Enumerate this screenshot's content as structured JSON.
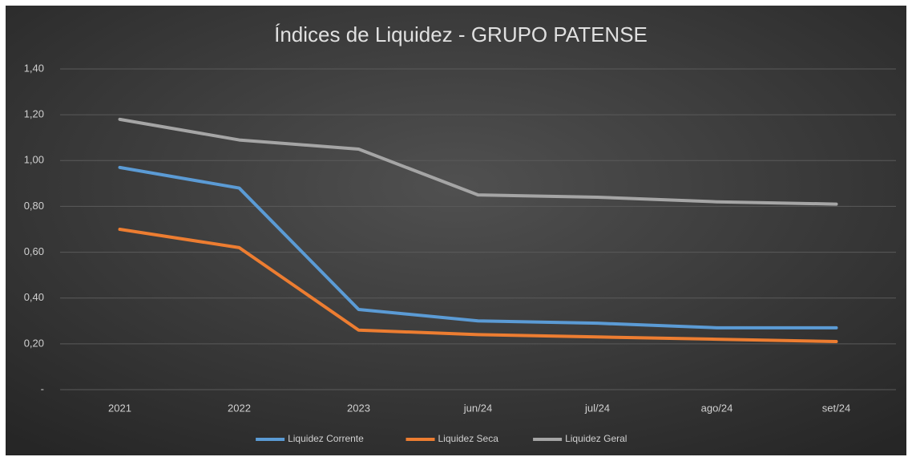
{
  "chart_data": {
    "type": "line",
    "title": "Índices de Liquidez - GRUPO PATENSE",
    "categories": [
      "2021",
      "2022",
      "2023",
      "jun/24",
      "jul/24",
      "ago/24",
      "set/24"
    ],
    "series": [
      {
        "name": "Liquidez Corrente",
        "color": "#5b9bd5",
        "values": [
          0.97,
          0.88,
          0.35,
          0.3,
          0.29,
          0.27,
          0.27
        ]
      },
      {
        "name": "Liquidez Seca",
        "color": "#ed7d31",
        "values": [
          0.7,
          0.62,
          0.26,
          0.24,
          0.23,
          0.22,
          0.21
        ]
      },
      {
        "name": "Liquidez Geral",
        "color": "#a5a5a5",
        "values": [
          1.18,
          1.09,
          1.05,
          0.85,
          0.84,
          0.82,
          0.81
        ]
      }
    ],
    "ylim": [
      0,
      1.4
    ],
    "yticks": [
      {
        "value": 0,
        "label": "-"
      },
      {
        "value": 0.2,
        "label": "0,20"
      },
      {
        "value": 0.4,
        "label": "0,40"
      },
      {
        "value": 0.6,
        "label": "0,60"
      },
      {
        "value": 0.8,
        "label": "0,80"
      },
      {
        "value": 1.0,
        "label": "1,00"
      },
      {
        "value": 1.2,
        "label": "1,20"
      },
      {
        "value": 1.4,
        "label": "1,40"
      }
    ],
    "grid": true,
    "legend": "bottom"
  }
}
